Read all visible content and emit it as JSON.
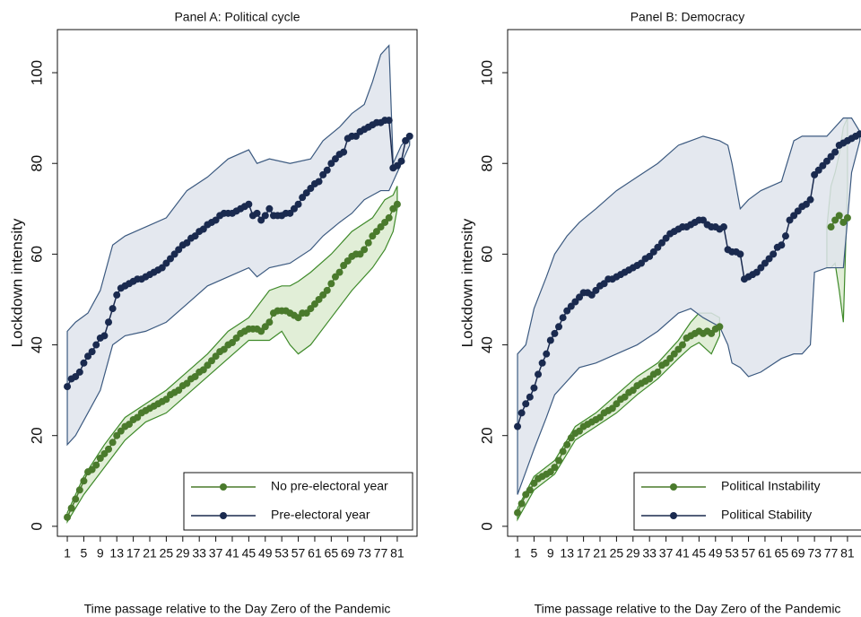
{
  "chart_data": [
    {
      "type": "line",
      "title": "Panel A: Political cycle",
      "ylabel": "Lockdown intensity",
      "xlabel": "Time passage relative to the Day Zero of the Pandemic",
      "xlim": [
        -1.4,
        85.8
      ],
      "ylim": [
        -2.2,
        109.5
      ],
      "xticks": [
        1,
        5,
        9,
        13,
        17,
        21,
        25,
        29,
        33,
        37,
        41,
        45,
        49,
        53,
        57,
        61,
        65,
        69,
        73,
        77,
        81
      ],
      "yticks": [
        0,
        20,
        40,
        60,
        80,
        100
      ],
      "legend": "lower right",
      "series": [
        {
          "name": "No pre-electoral year",
          "color": "#4a7a2c",
          "band_color": "#dcebd0",
          "band_line": "#3f8a2a",
          "x": [
            1,
            2,
            3,
            4,
            5,
            6,
            7,
            8,
            9,
            10,
            11,
            12,
            13,
            14,
            15,
            16,
            17,
            18,
            19,
            20,
            21,
            22,
            23,
            24,
            25,
            26,
            27,
            28,
            29,
            30,
            31,
            32,
            33,
            34,
            35,
            36,
            37,
            38,
            39,
            40,
            41,
            42,
            43,
            44,
            45,
            46,
            47,
            48,
            49,
            50,
            51,
            52,
            53,
            54,
            55,
            56,
            57,
            58,
            59,
            60,
            61,
            62,
            63,
            64,
            65,
            66,
            67,
            68,
            69,
            70,
            71,
            72,
            73,
            74,
            75,
            76,
            77,
            78,
            79,
            80,
            81
          ],
          "values": [
            2,
            4,
            6,
            8,
            10,
            12,
            12.5,
            13.5,
            15,
            16,
            17,
            18.5,
            20,
            21,
            22,
            22.5,
            23.5,
            24,
            25,
            25.5,
            26,
            26.5,
            27,
            27.5,
            28,
            29,
            29.5,
            30,
            31,
            31.5,
            32.5,
            33,
            34,
            34.5,
            35.5,
            36.5,
            37.5,
            38.5,
            39,
            40,
            40.5,
            41.5,
            42.5,
            43,
            43.5,
            43.5,
            43.5,
            43,
            44,
            45,
            47,
            47.5,
            47.5,
            47.5,
            47,
            46.5,
            46,
            47,
            47,
            48,
            49,
            50,
            51,
            52,
            53.5,
            55,
            56,
            57.5,
            58.5,
            59.5,
            60,
            60,
            61,
            62.5,
            64,
            65,
            66,
            67,
            68,
            70,
            71
          ],
          "band": {
            "x": [
              1,
              5,
              10,
              15,
              20,
              25,
              30,
              35,
              40,
              45,
              50,
              53,
              55,
              57,
              60,
              65,
              70,
              75,
              78,
              80,
              81
            ],
            "lower": [
              1,
              7,
              13,
              19,
              23,
              25,
              29,
              33,
              37,
              41,
              41,
              43,
              40,
              38,
              40,
              46,
              52,
              57,
              61,
              65,
              70
            ],
            "upper": [
              3,
              11,
              18,
              24,
              27,
              30,
              34,
              38,
              43,
              46,
              52,
              53,
              53,
              54,
              56,
              60,
              65,
              68,
              72,
              73,
              75
            ]
          }
        },
        {
          "name": "Pre-electoral year",
          "color": "#1a2a4f",
          "band_color": "#dfe4ec",
          "band_line": "#3c5a80",
          "x": [
            1,
            2,
            3,
            4,
            5,
            6,
            7,
            8,
            9,
            10,
            11,
            12,
            13,
            14,
            15,
            16,
            17,
            18,
            19,
            20,
            21,
            22,
            23,
            24,
            25,
            26,
            27,
            28,
            29,
            30,
            31,
            32,
            33,
            34,
            35,
            36,
            37,
            38,
            39,
            40,
            41,
            42,
            43,
            44,
            45,
            46,
            47,
            48,
            49,
            50,
            51,
            52,
            53,
            54,
            55,
            56,
            57,
            58,
            59,
            60,
            61,
            62,
            63,
            64,
            65,
            66,
            67,
            68,
            69,
            70,
            71,
            72,
            73,
            74,
            75,
            76,
            77,
            78,
            79,
            80,
            81,
            82,
            83,
            84
          ],
          "values": [
            30.8,
            32.5,
            33,
            34,
            36,
            37.5,
            38.5,
            40,
            41.5,
            42,
            45,
            48,
            51,
            52.5,
            53,
            53.5,
            54,
            54.5,
            54.5,
            55,
            55.5,
            56,
            56.5,
            57,
            58,
            59,
            60,
            61,
            62,
            62.5,
            63.5,
            64,
            65,
            65.5,
            66.5,
            67,
            67.5,
            68.5,
            69,
            69,
            69,
            69.5,
            70,
            70.5,
            71,
            68.5,
            69,
            67.5,
            68.5,
            70,
            68.5,
            68.5,
            68.5,
            69,
            69,
            70,
            71,
            72.5,
            73.5,
            74.5,
            75.5,
            76,
            77.5,
            78.5,
            80,
            81,
            82,
            82.5,
            85.5,
            86,
            86,
            87,
            87.5,
            88,
            88.5,
            89,
            89,
            89.5,
            89.5,
            79,
            79.5,
            80.5,
            85,
            86
          ],
          "band": {
            "x": [
              1,
              3,
              6,
              9,
              12,
              15,
              20,
              25,
              30,
              35,
              40,
              45,
              47,
              50,
              55,
              60,
              63,
              67,
              70,
              73,
              75,
              77,
              79,
              80,
              82,
              84
            ],
            "lower": [
              18,
              20,
              25,
              30,
              40,
              42,
              43,
              45,
              49,
              53,
              55,
              57,
              55,
              57,
              58,
              61,
              64,
              67,
              69,
              72,
              73,
              74,
              74,
              76,
              80,
              84
            ],
            "upper": [
              43,
              45,
              47,
              52,
              62,
              64,
              66,
              68,
              74,
              77,
              81,
              83,
              80,
              81,
              80,
              81,
              85,
              88,
              91,
              93,
              98,
              104,
              106,
              80,
              84,
              86
            ]
          }
        }
      ]
    },
    {
      "type": "line",
      "title": "Panel B: Democracy",
      "ylabel": "Lockdown intensity",
      "xlabel": "Time passage relative to the Day Zero of the Pandemic",
      "xlim": [
        -1.4,
        85.8
      ],
      "ylim": [
        -2.2,
        109.5
      ],
      "xticks": [
        1,
        5,
        9,
        13,
        17,
        21,
        25,
        29,
        33,
        37,
        41,
        45,
        49,
        53,
        57,
        61,
        65,
        69,
        73,
        77,
        81
      ],
      "yticks": [
        0,
        20,
        40,
        60,
        80,
        100
      ],
      "legend": "lower right",
      "series": [
        {
          "name": "Political Instability",
          "color": "#4a7a2c",
          "band_color": "#dcebd0",
          "band_line": "#3f8a2a",
          "x": [
            1,
            2,
            3,
            4,
            5,
            6,
            7,
            8,
            9,
            10,
            11,
            12,
            13,
            14,
            15,
            16,
            17,
            18,
            19,
            20,
            21,
            22,
            23,
            24,
            25,
            26,
            27,
            28,
            29,
            30,
            31,
            32,
            33,
            34,
            35,
            36,
            37,
            38,
            39,
            40,
            41,
            42,
            43,
            44,
            45,
            46,
            47,
            48,
            49,
            50,
            51,
            52,
            53,
            54,
            55,
            56,
            57,
            58,
            59,
            60,
            61,
            62,
            63,
            64,
            65,
            66,
            67,
            68,
            69,
            70,
            71,
            72,
            73,
            74,
            75,
            76,
            77,
            78,
            79,
            80,
            81
          ],
          "values": [
            3,
            5,
            7,
            8,
            9.5,
            10.5,
            11,
            11.5,
            12,
            13,
            14.5,
            16.5,
            18,
            19.5,
            20.5,
            21,
            22,
            22.5,
            23,
            23.5,
            24,
            25,
            25.5,
            26,
            27,
            28,
            28.5,
            29.5,
            30,
            31,
            31.5,
            32,
            32.5,
            33.5,
            34,
            35.5,
            36,
            37,
            38,
            39,
            40,
            41.5,
            42,
            42.5,
            43,
            42.5,
            43,
            42.5,
            43.5,
            44,
            null,
            null,
            null,
            null,
            null,
            null,
            null,
            null,
            null,
            null,
            null,
            null,
            null,
            null,
            null,
            null,
            null,
            null,
            null,
            null,
            null,
            null,
            null,
            null,
            null,
            null,
            66,
            67.5,
            68.5,
            67,
            68
          ],
          "band": {
            "x": [
              1,
              5,
              10,
              15,
              20,
              25,
              30,
              35,
              40,
              43,
              45,
              48,
              50,
              51,
              76,
              77,
              78,
              79,
              80,
              81
            ],
            "lower": [
              1.5,
              8,
              11.5,
              19,
              22,
              25,
              29,
              32.5,
              37,
              39.5,
              40.5,
              38,
              42,
              null,
              57,
              57,
              58,
              52,
              45,
              75
            ],
            "upper": [
              4,
              11,
              14.5,
              22,
              25,
              29,
              33,
              36,
              41,
              45,
              47,
              47,
              46,
              null,
              66,
              75,
              78,
              82,
              88,
              90
            ]
          }
        },
        {
          "name": "Political Stability",
          "color": "#1a2a4f",
          "band_color": "#dfe4ec",
          "band_line": "#3c5a80",
          "x": [
            1,
            2,
            3,
            4,
            5,
            6,
            7,
            8,
            9,
            10,
            11,
            12,
            13,
            14,
            15,
            16,
            17,
            18,
            19,
            20,
            21,
            22,
            23,
            24,
            25,
            26,
            27,
            28,
            29,
            30,
            31,
            32,
            33,
            34,
            35,
            36,
            37,
            38,
            39,
            40,
            41,
            42,
            43,
            44,
            45,
            46,
            47,
            48,
            49,
            50,
            51,
            52,
            53,
            54,
            55,
            56,
            57,
            58,
            59,
            60,
            61,
            62,
            63,
            64,
            65,
            66,
            67,
            68,
            69,
            70,
            71,
            72,
            73,
            74,
            75,
            76,
            77,
            78,
            79,
            80,
            81,
            82,
            83,
            84
          ],
          "values": [
            22,
            25,
            27,
            28.5,
            30.5,
            33.5,
            36,
            38,
            41,
            42.5,
            44,
            46,
            47.5,
            48.5,
            49.5,
            50.5,
            51.5,
            51.5,
            51,
            52,
            53,
            53.5,
            54.5,
            54.5,
            55,
            55.5,
            56,
            56.5,
            57,
            57.5,
            58,
            59,
            59.5,
            60.5,
            61.5,
            62.5,
            63.5,
            64.5,
            65,
            65.5,
            66,
            66,
            66.5,
            67,
            67.5,
            67.5,
            66.5,
            66,
            66,
            65.5,
            66,
            61,
            60.5,
            60.5,
            60,
            54.5,
            55,
            55.5,
            56,
            57,
            58,
            59,
            60,
            61.5,
            62,
            64,
            67.5,
            68.5,
            69.5,
            70.5,
            71,
            72,
            77.5,
            78.5,
            79.5,
            80.5,
            81.5,
            82.5,
            84,
            84.5,
            85,
            85.5,
            86,
            86.5
          ],
          "band": {
            "x": [
              1,
              3,
              5,
              8,
              10,
              13,
              16,
              20,
              25,
              30,
              35,
              40,
              43,
              46,
              50,
              52,
              53,
              55,
              57,
              60,
              65,
              68,
              70,
              72,
              73,
              76,
              80,
              82,
              84
            ],
            "lower": [
              7,
              12,
              17,
              24,
              29,
              32,
              35,
              36,
              38,
              40,
              43,
              47,
              48,
              46,
              44,
              40,
              36,
              35,
              33,
              34,
              37,
              38,
              38,
              40,
              56,
              57,
              57,
              78,
              85
            ],
            "upper": [
              38,
              40,
              48,
              55,
              60,
              64,
              67,
              70,
              74,
              77,
              80,
              84,
              85,
              86,
              85,
              84,
              80,
              70,
              72,
              74,
              76,
              85,
              86,
              86,
              86,
              86,
              90,
              90,
              87
            ]
          }
        }
      ]
    }
  ]
}
